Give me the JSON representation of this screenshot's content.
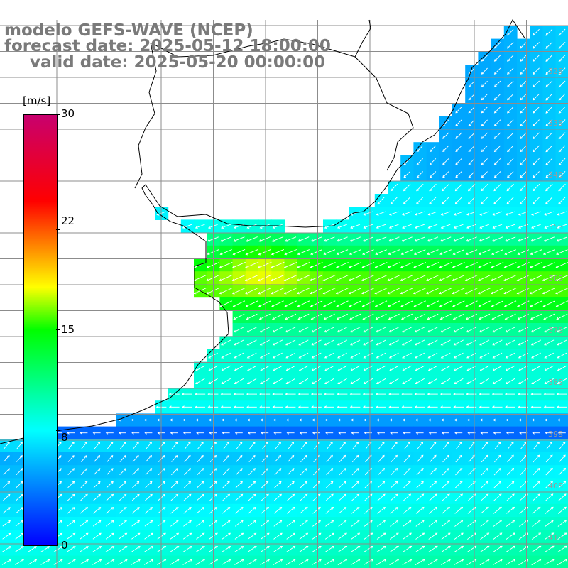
{
  "header": {
    "line1": "modelo GEFS-WAVE (NCEP)",
    "line2": "forecast date: 2025-05-12 18:00:00",
    "line3": "valid date: 2025-05-20 00:00:00"
  },
  "colorbar": {
    "unit": "[m/s]",
    "ticks": [
      "30",
      "22",
      "15",
      "8",
      "0"
    ],
    "tick_values": [
      30,
      22,
      15,
      8,
      0
    ],
    "vmin": 0,
    "vmax": 30,
    "colors": [
      "#0000ff",
      "#00ffff",
      "#00ff00",
      "#ffff00",
      "#ff8000",
      "#ff0000",
      "#c8006e"
    ]
  },
  "map": {
    "variable": "wind speed",
    "lat_labels": [
      "32S",
      "33S",
      "34S",
      "35S",
      "36S",
      "37S",
      "38S",
      "39S",
      "40S",
      "41S"
    ],
    "grid_color": "#8c8c8c",
    "coast_color": "#000000",
    "arrow_color": "#ffffff",
    "land_color": "#ffffff"
  }
}
